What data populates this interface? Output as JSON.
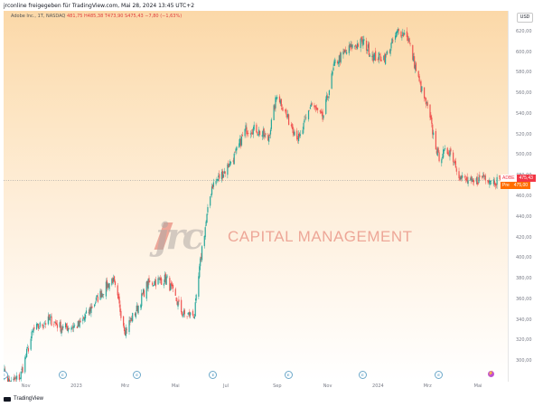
{
  "caption": "jrconline freigegeben für TradingView.com, Mai 28, 2024 13:45 UTC+2",
  "legend": {
    "symbol": "Adobe Inc., 1T, NASDAQ",
    "values": "481,75 H485,38 T473,90 S475,43 −7,80 (−1,63%)"
  },
  "currency": "USD",
  "watermark": {
    "logo": "jrc",
    "text": "CAPITAL MANAGEMENT"
  },
  "tags": {
    "last": {
      "label": "ADBE",
      "value": "475,43",
      "color": "#f23645"
    },
    "pre": {
      "label": "Pre",
      "value": "475,00",
      "color": "#ff6d00"
    }
  },
  "footer": "TradingView",
  "colors": {
    "up": "#26a69a",
    "down": "#ef5350",
    "pane": "#fde6c5"
  },
  "chart_data": {
    "type": "candlestick",
    "y_axis": {
      "min": 280,
      "max": 640,
      "ticks": [
        "300,00",
        "320,00",
        "340,00",
        "360,00",
        "380,00",
        "400,00",
        "420,00",
        "440,00",
        "460,00",
        "480,00",
        "500,00",
        "520,00",
        "540,00",
        "560,00",
        "580,00",
        "600,00",
        "620,00"
      ]
    },
    "x_axis": {
      "range": [
        "2022-10-05",
        "2024-06-06"
      ],
      "ticks": [
        {
          "label": "Nov",
          "date": "2022-11-01"
        },
        {
          "label": "2023",
          "date": "2023-01-01"
        },
        {
          "label": "Mrz",
          "date": "2023-03-01"
        },
        {
          "label": "Mai",
          "date": "2023-05-01"
        },
        {
          "label": "Jul",
          "date": "2023-07-01"
        },
        {
          "label": "Sep",
          "date": "2023-09-01"
        },
        {
          "label": "Nov",
          "date": "2023-11-01"
        },
        {
          "label": "2024",
          "date": "2024-01-01"
        },
        {
          "label": "Mrz",
          "date": "2024-03-01"
        },
        {
          "label": "Mai",
          "date": "2024-05-01"
        }
      ]
    },
    "reference_line": 475.43,
    "earnings_markers": [
      "2022-10-05",
      "2022-12-15",
      "2023-03-15",
      "2023-06-15",
      "2023-09-14",
      "2023-12-13",
      "2024-03-14"
    ],
    "anchors": [
      [
        "2022-10-05",
        290
      ],
      [
        "2022-10-13",
        278
      ],
      [
        "2022-10-25",
        285
      ],
      [
        "2022-11-10",
        330
      ],
      [
        "2022-11-30",
        340
      ],
      [
        "2022-12-15",
        332
      ],
      [
        "2023-01-05",
        335
      ],
      [
        "2023-01-30",
        365
      ],
      [
        "2023-02-14",
        380
      ],
      [
        "2023-03-01",
        330
      ],
      [
        "2023-03-15",
        350
      ],
      [
        "2023-03-28",
        375
      ],
      [
        "2023-04-20",
        380
      ],
      [
        "2023-05-10",
        345
      ],
      [
        "2023-05-24",
        345
      ],
      [
        "2023-06-02",
        410
      ],
      [
        "2023-06-14",
        470
      ],
      [
        "2023-06-30",
        485
      ],
      [
        "2023-07-12",
        500
      ],
      [
        "2023-07-25",
        525
      ],
      [
        "2023-08-07",
        525
      ],
      [
        "2023-08-21",
        515
      ],
      [
        "2023-09-01",
        560
      ],
      [
        "2023-09-14",
        535
      ],
      [
        "2023-09-28",
        515
      ],
      [
        "2023-10-12",
        550
      ],
      [
        "2023-10-26",
        535
      ],
      [
        "2023-11-10",
        590
      ],
      [
        "2023-11-30",
        605
      ],
      [
        "2023-12-14",
        610
      ],
      [
        "2023-12-27",
        595
      ],
      [
        "2024-01-10",
        595
      ],
      [
        "2024-01-25",
        620
      ],
      [
        "2024-02-05",
        617
      ],
      [
        "2024-02-20",
        570
      ],
      [
        "2024-03-01",
        545
      ],
      [
        "2024-03-14",
        498
      ],
      [
        "2024-03-28",
        505
      ],
      [
        "2024-04-10",
        478
      ],
      [
        "2024-04-25",
        472
      ],
      [
        "2024-05-08",
        480
      ],
      [
        "2024-05-20",
        475
      ],
      [
        "2024-05-28",
        475.43
      ]
    ]
  }
}
